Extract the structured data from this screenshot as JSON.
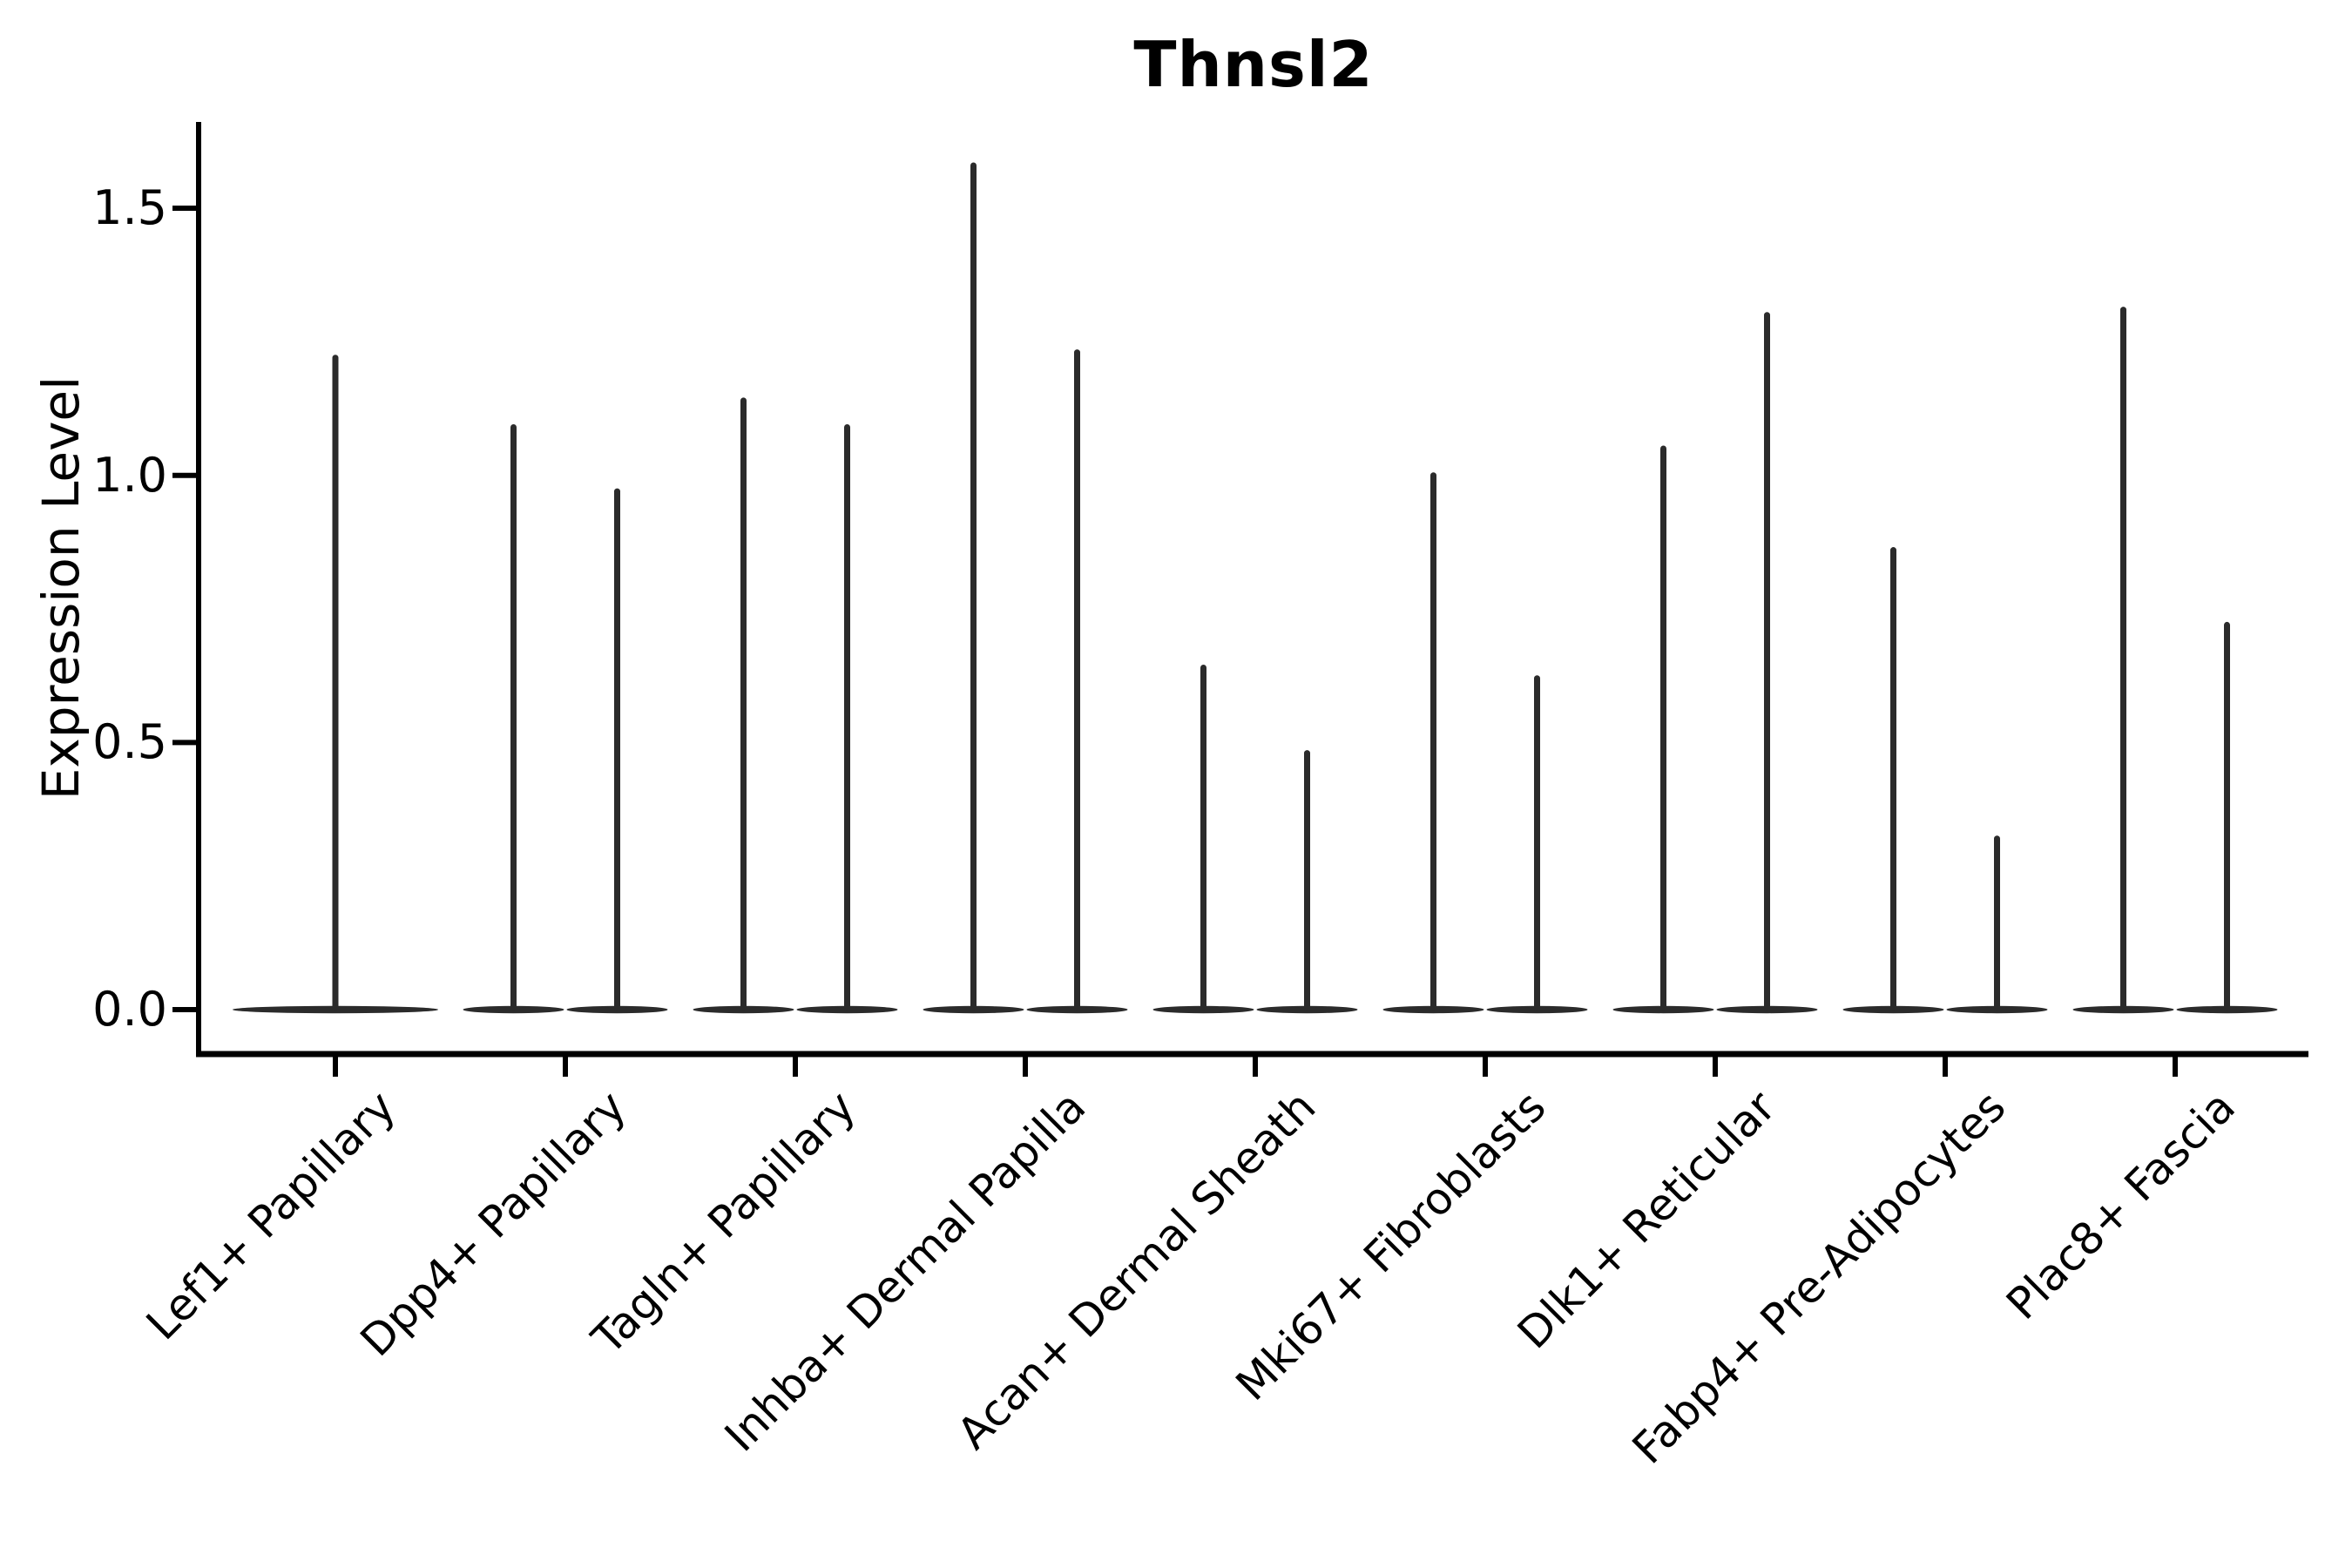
{
  "figure": {
    "title": "Thnsl2",
    "y_axis_label": "Expression Level"
  },
  "chart_data": {
    "type": "violin",
    "title": "Thnsl2",
    "xlabel": "",
    "ylabel": "Expression Level",
    "yticks": [
      0.0,
      0.5,
      1.0,
      1.5
    ],
    "ylim": [
      -0.08,
      1.66
    ],
    "grid": false,
    "legend": "none",
    "baseline_value": 0.0,
    "categories": [
      "Lef1+ Papillary",
      "Dpp4+ Papillary",
      "Tagln+ Papillary",
      "Inhba+ Dermal Papilla",
      "Acan+ Dermal Sheath",
      "Mki67+ Fibroblasts",
      "Dlk1+ Reticular",
      "Fabp4+ Pre-Adipocytes",
      "Plac8+ Fascia"
    ],
    "violins": [
      {
        "category": "Lef1+ Papillary",
        "spike_maxima": [
          1.22
        ]
      },
      {
        "category": "Dpp4+ Papillary",
        "spike_maxima": [
          1.09,
          0.97
        ]
      },
      {
        "category": "Tagln+ Papillary",
        "spike_maxima": [
          1.14,
          1.09
        ]
      },
      {
        "category": "Inhba+ Dermal Papilla",
        "spike_maxima": [
          1.58,
          1.23
        ]
      },
      {
        "category": "Acan+ Dermal Sheath",
        "spike_maxima": [
          0.64,
          0.48
        ]
      },
      {
        "category": "Mki67+ Fibroblasts",
        "spike_maxima": [
          1.0,
          0.62
        ]
      },
      {
        "category": "Dlk1+ Reticular",
        "spike_maxima": [
          1.05,
          1.3
        ]
      },
      {
        "category": "Fabp4+ Pre-Adipocytes",
        "spike_maxima": [
          0.86,
          0.32
        ]
      },
      {
        "category": "Plac8+ Fascia",
        "spike_maxima": [
          1.31,
          0.72
        ]
      }
    ],
    "style_hints": {
      "violin_color": "#2b2b2b",
      "axis_color": "#000000",
      "bodies_flat_at_zero": true,
      "single_centered_violin_first_category": true,
      "two_violins_per_category_from_index": 1
    }
  }
}
